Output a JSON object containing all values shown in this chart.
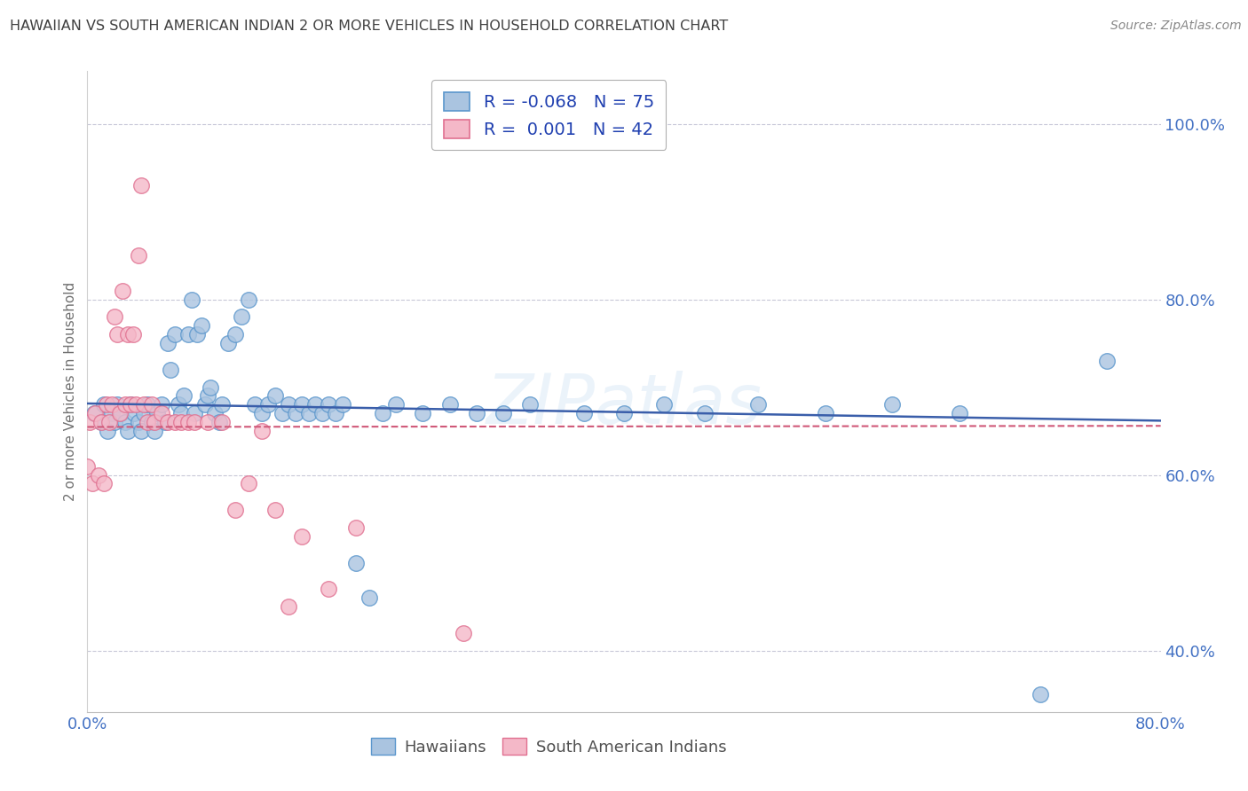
{
  "title": "HAWAIIAN VS SOUTH AMERICAN INDIAN 2 OR MORE VEHICLES IN HOUSEHOLD CORRELATION CHART",
  "source": "Source: ZipAtlas.com",
  "ylabel": "2 or more Vehicles in Household",
  "xlim": [
    0.0,
    0.8
  ],
  "ylim": [
    0.33,
    1.06
  ],
  "xticks": [
    0.0,
    0.1,
    0.2,
    0.3,
    0.4,
    0.5,
    0.6,
    0.7,
    0.8
  ],
  "ytick_positions": [
    0.4,
    0.6,
    0.8,
    1.0
  ],
  "yticklabels": [
    "40.0%",
    "60.0%",
    "80.0%",
    "100.0%"
  ],
  "hawaiian_color": "#aac4e0",
  "hawaiian_edge": "#5a96cc",
  "south_american_color": "#f4b8c8",
  "south_american_edge": "#e07090",
  "trend_hawaiian_color": "#3a5eaa",
  "trend_south_american_color": "#d05878",
  "R_hawaiian": -0.068,
  "N_hawaiian": 75,
  "R_south_american": 0.001,
  "N_south_american": 42,
  "hawaiian_x": [
    0.005,
    0.01,
    0.012,
    0.015,
    0.018,
    0.02,
    0.022,
    0.025,
    0.028,
    0.03,
    0.032,
    0.035,
    0.038,
    0.04,
    0.042,
    0.045,
    0.048,
    0.05,
    0.052,
    0.055,
    0.058,
    0.06,
    0.062,
    0.065,
    0.068,
    0.07,
    0.072,
    0.075,
    0.078,
    0.08,
    0.082,
    0.085,
    0.088,
    0.09,
    0.092,
    0.095,
    0.098,
    0.1,
    0.105,
    0.11,
    0.115,
    0.12,
    0.125,
    0.13,
    0.135,
    0.14,
    0.145,
    0.15,
    0.155,
    0.16,
    0.165,
    0.17,
    0.175,
    0.18,
    0.185,
    0.19,
    0.2,
    0.21,
    0.22,
    0.23,
    0.25,
    0.27,
    0.29,
    0.31,
    0.33,
    0.37,
    0.4,
    0.43,
    0.46,
    0.5,
    0.55,
    0.6,
    0.65,
    0.71,
    0.76
  ],
  "hawaiian_y": [
    0.67,
    0.66,
    0.68,
    0.65,
    0.67,
    0.66,
    0.68,
    0.67,
    0.66,
    0.65,
    0.68,
    0.67,
    0.66,
    0.65,
    0.67,
    0.68,
    0.66,
    0.65,
    0.67,
    0.68,
    0.66,
    0.75,
    0.72,
    0.76,
    0.68,
    0.67,
    0.69,
    0.76,
    0.8,
    0.67,
    0.76,
    0.77,
    0.68,
    0.69,
    0.7,
    0.67,
    0.66,
    0.68,
    0.75,
    0.76,
    0.78,
    0.8,
    0.68,
    0.67,
    0.68,
    0.69,
    0.67,
    0.68,
    0.67,
    0.68,
    0.67,
    0.68,
    0.67,
    0.68,
    0.67,
    0.68,
    0.5,
    0.46,
    0.67,
    0.68,
    0.67,
    0.68,
    0.67,
    0.67,
    0.68,
    0.67,
    0.67,
    0.68,
    0.67,
    0.68,
    0.67,
    0.68,
    0.67,
    0.35,
    0.73
  ],
  "south_american_x": [
    0.0,
    0.002,
    0.004,
    0.006,
    0.008,
    0.01,
    0.012,
    0.014,
    0.016,
    0.018,
    0.02,
    0.022,
    0.024,
    0.026,
    0.028,
    0.03,
    0.032,
    0.034,
    0.036,
    0.038,
    0.04,
    0.042,
    0.045,
    0.048,
    0.05,
    0.055,
    0.06,
    0.065,
    0.07,
    0.075,
    0.08,
    0.09,
    0.1,
    0.11,
    0.12,
    0.13,
    0.14,
    0.15,
    0.16,
    0.18,
    0.2,
    0.28
  ],
  "south_american_y": [
    0.61,
    0.66,
    0.59,
    0.67,
    0.6,
    0.66,
    0.59,
    0.68,
    0.66,
    0.68,
    0.78,
    0.76,
    0.67,
    0.81,
    0.68,
    0.76,
    0.68,
    0.76,
    0.68,
    0.85,
    0.93,
    0.68,
    0.66,
    0.68,
    0.66,
    0.67,
    0.66,
    0.66,
    0.66,
    0.66,
    0.66,
    0.66,
    0.66,
    0.56,
    0.59,
    0.65,
    0.56,
    0.45,
    0.53,
    0.47,
    0.54,
    0.42
  ],
  "legend_hawaiians": "Hawaiians",
  "legend_south_american": "South American Indians",
  "background_color": "#ffffff",
  "grid_color": "#c8c8d8",
  "title_color": "#404040",
  "source_color": "#888888",
  "axis_label_color": "#707070",
  "tick_color": "#4472c4",
  "watermark": "ZIPatlas"
}
